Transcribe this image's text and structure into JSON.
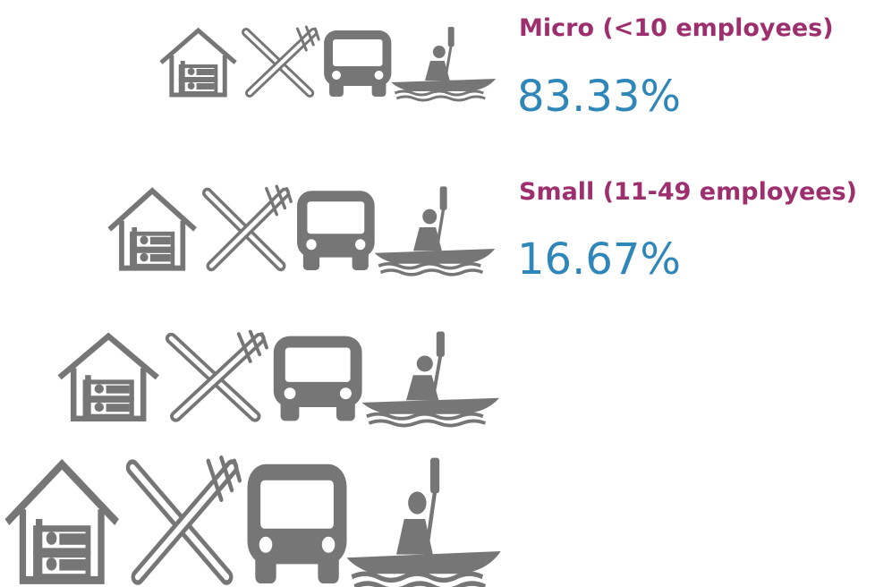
{
  "items": [
    {
      "label": "Micro (<10 employees)",
      "value": "83.33%"
    },
    {
      "label": "Small (11-49 employees)",
      "value": "16.67%"
    }
  ]
}
